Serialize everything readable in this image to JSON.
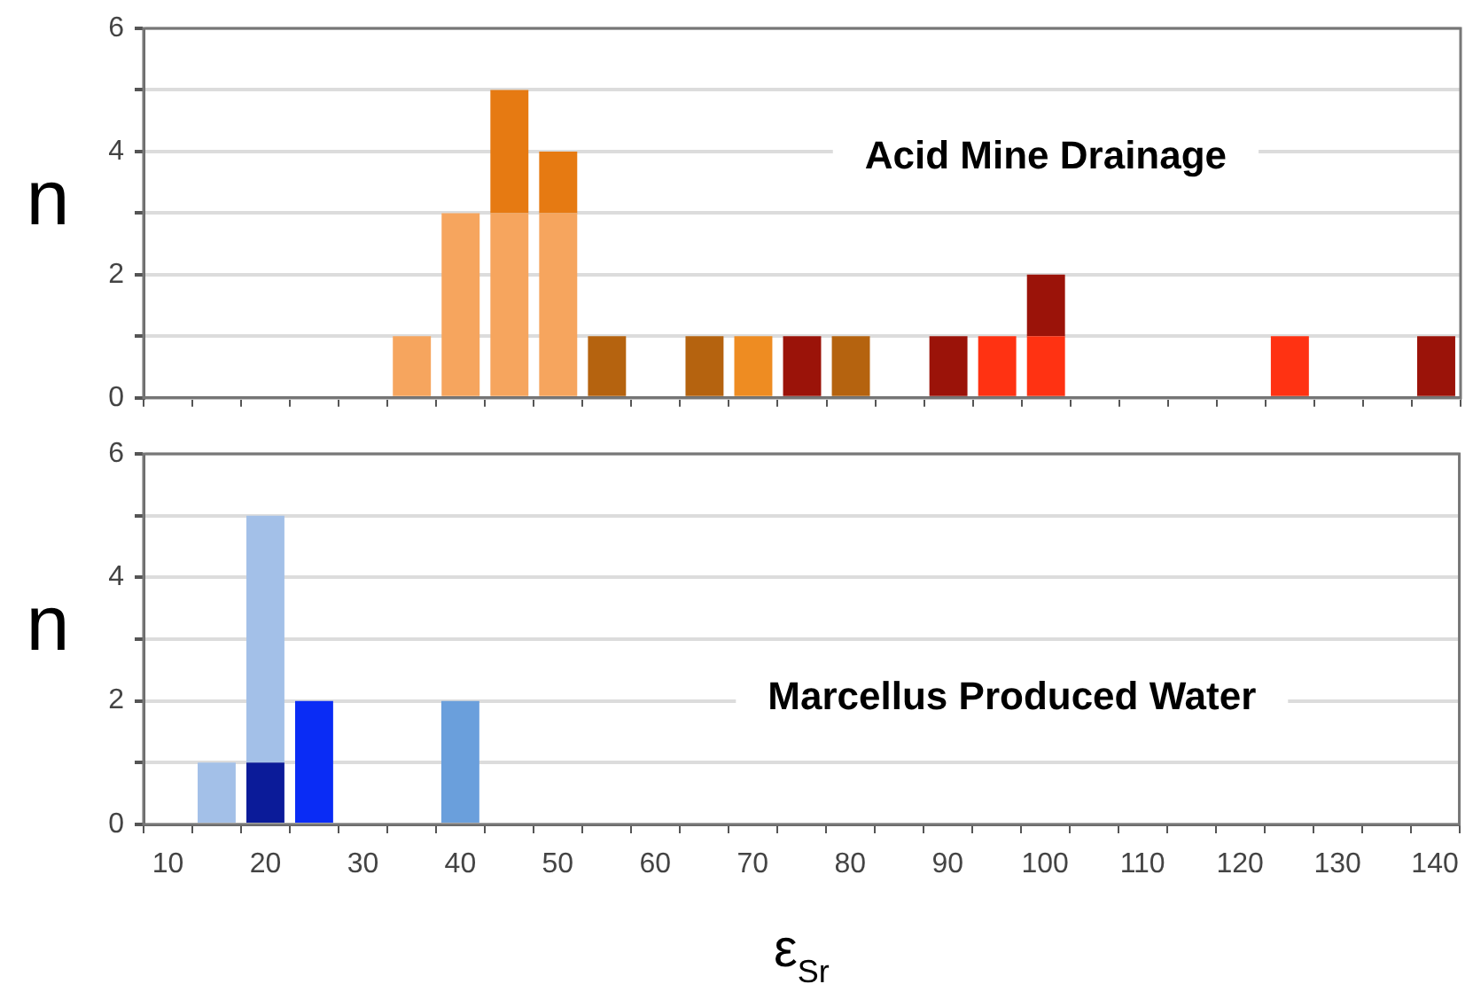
{
  "chart_data": [
    {
      "type": "bar",
      "stacked": true,
      "ylabel": "n",
      "categories": [
        "10",
        null,
        "20",
        null,
        "30",
        null,
        "40",
        null,
        "50",
        null,
        "60",
        null,
        "70",
        null,
        "80",
        null,
        "90",
        null,
        "100",
        null,
        "110",
        null,
        "120",
        null,
        "130",
        null,
        "140"
      ],
      "series": [
        {
          "color": "#f6a55e",
          "values": [
            null,
            null,
            null,
            null,
            null,
            1,
            3,
            3,
            3,
            null,
            null,
            null,
            null,
            null,
            null,
            null,
            null,
            null,
            null,
            null,
            null,
            null,
            null,
            null,
            null,
            null,
            null
          ]
        },
        {
          "color": "#e67a12",
          "values": [
            null,
            null,
            null,
            null,
            null,
            null,
            null,
            2,
            1,
            null,
            null,
            null,
            null,
            null,
            null,
            null,
            null,
            null,
            null,
            null,
            null,
            null,
            null,
            null,
            null,
            null,
            null
          ]
        },
        {
          "color": "#b5630f",
          "values": [
            null,
            null,
            null,
            null,
            null,
            null,
            null,
            null,
            null,
            1,
            null,
            1,
            null,
            null,
            1,
            null,
            null,
            null,
            null,
            null,
            null,
            null,
            null,
            null,
            null,
            null,
            null
          ]
        },
        {
          "color": "#ee8c22",
          "values": [
            null,
            null,
            null,
            null,
            null,
            null,
            null,
            null,
            null,
            null,
            null,
            null,
            1,
            null,
            null,
            null,
            null,
            null,
            null,
            null,
            null,
            null,
            null,
            null,
            null,
            null,
            null
          ]
        },
        {
          "color": "#ff3212",
          "values": [
            null,
            null,
            null,
            null,
            null,
            null,
            null,
            null,
            null,
            null,
            null,
            null,
            null,
            null,
            null,
            null,
            null,
            1,
            1,
            null,
            null,
            null,
            null,
            1,
            null,
            null,
            null
          ]
        },
        {
          "color": "#9b1309",
          "values": [
            null,
            null,
            null,
            null,
            null,
            null,
            null,
            null,
            null,
            null,
            null,
            null,
            null,
            1,
            null,
            null,
            1,
            null,
            1,
            null,
            null,
            null,
            null,
            null,
            null,
            null,
            1
          ]
        }
      ],
      "ylim": [
        0,
        6
      ],
      "yticks": [
        0,
        {
          "value": 1,
          "label": null
        },
        2,
        {
          "value": 3,
          "label": null
        },
        4,
        {
          "value": 5,
          "label": null
        },
        6
      ],
      "grid": "y",
      "tick_labels": "y",
      "annotations": [
        "Acid Mine Drainage"
      ]
    },
    {
      "type": "bar",
      "stacked": true,
      "ylabel": "n",
      "xlabel": "ε$_{Sr}$",
      "categories": [
        "10",
        null,
        "20",
        null,
        "30",
        null,
        "40",
        null,
        "50",
        null,
        "60",
        null,
        "70",
        null,
        "80",
        null,
        "90",
        null,
        "100",
        null,
        "110",
        null,
        "120",
        null,
        "130",
        null,
        "140"
      ],
      "series": [
        {
          "color": "#0b1b99",
          "values": [
            null,
            null,
            1,
            null,
            null,
            null,
            null,
            null,
            null,
            null,
            null,
            null,
            null,
            null,
            null,
            null,
            null,
            null,
            null,
            null,
            null,
            null,
            null,
            null,
            null,
            null,
            null
          ]
        },
        {
          "color": "#a3c0e8",
          "values": [
            null,
            1,
            4,
            null,
            null,
            null,
            null,
            null,
            null,
            null,
            null,
            null,
            null,
            null,
            null,
            null,
            null,
            null,
            null,
            null,
            null,
            null,
            null,
            null,
            null,
            null,
            null
          ]
        },
        {
          "color": "#0a2cf5",
          "values": [
            null,
            null,
            null,
            2,
            null,
            null,
            null,
            null,
            null,
            null,
            null,
            null,
            null,
            null,
            null,
            null,
            null,
            null,
            null,
            null,
            null,
            null,
            null,
            null,
            null,
            null,
            null
          ]
        },
        {
          "color": "#6a9fdc",
          "values": [
            null,
            null,
            null,
            null,
            null,
            null,
            2,
            null,
            null,
            null,
            null,
            null,
            null,
            null,
            null,
            null,
            null,
            null,
            null,
            null,
            null,
            null,
            null,
            null,
            null,
            null,
            null
          ]
        }
      ],
      "ylim": [
        0,
        6
      ],
      "yticks": [
        0,
        {
          "value": 1,
          "label": null
        },
        2,
        {
          "value": 3,
          "label": null
        },
        4,
        {
          "value": 5,
          "label": null
        },
        6
      ],
      "grid": "y",
      "annotations": [
        "Marcellus Produced Water"
      ]
    }
  ]
}
